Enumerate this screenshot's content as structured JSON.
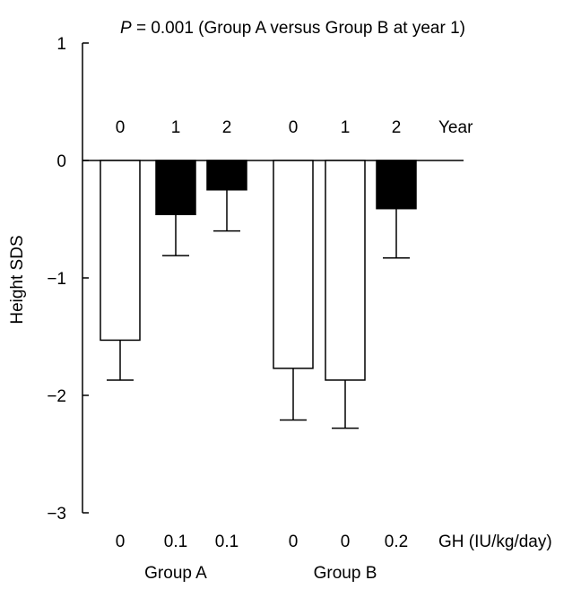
{
  "chart_data": {
    "type": "bar",
    "title_prefix": "P",
    "title_rest": " = 0.001 (Group A versus Group B at year 1)",
    "ylabel": "Height SDS",
    "ylim": [
      -3,
      1
    ],
    "yticks": [
      1,
      0,
      -1,
      -2,
      -3
    ],
    "ytick_labels": [
      "1",
      "0",
      "−1",
      "−2",
      "−3"
    ],
    "year_header": "Year",
    "gh_header": "GH (IU/kg/day)",
    "groups": [
      "Group A",
      "Group B"
    ],
    "bars": [
      {
        "group": "Group A",
        "year": "0",
        "gh": "0",
        "value": -1.53,
        "error": 0.34,
        "fill": "open"
      },
      {
        "group": "Group A",
        "year": "1",
        "gh": "0.1",
        "value": -0.46,
        "error": 0.35,
        "fill": "solid"
      },
      {
        "group": "Group A",
        "year": "2",
        "gh": "0.1",
        "value": -0.25,
        "error": 0.35,
        "fill": "solid"
      },
      {
        "group": "Group B",
        "year": "0",
        "gh": "0",
        "value": -1.77,
        "error": 0.44,
        "fill": "open"
      },
      {
        "group": "Group B",
        "year": "1",
        "gh": "0",
        "value": -1.87,
        "error": 0.41,
        "fill": "open"
      },
      {
        "group": "Group B",
        "year": "2",
        "gh": "0.2",
        "value": -0.41,
        "error": 0.42,
        "fill": "solid"
      }
    ],
    "colors": {
      "solid": "#000000",
      "open": "#ffffff",
      "stroke": "#000000"
    }
  }
}
